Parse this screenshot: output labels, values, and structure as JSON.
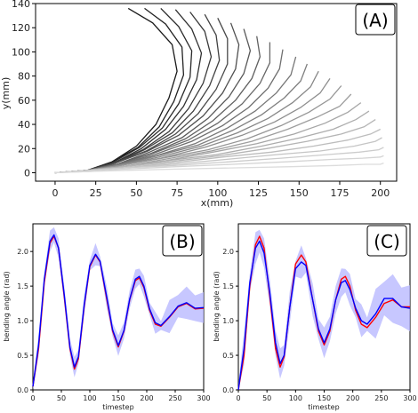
{
  "chart_data": [
    {
      "type": "line",
      "panel_label": "(A)",
      "xlabel": "x(mm)",
      "ylabel": "y(mm)",
      "xlim": [
        -12,
        210
      ],
      "ylim": [
        -7,
        140
      ],
      "xticks": [
        0,
        25,
        50,
        75,
        100,
        125,
        150,
        175,
        200
      ],
      "yticks": [
        0,
        20,
        40,
        60,
        80,
        100,
        120,
        140
      ],
      "description_colors": {
        "darkest": "#1a1a1a",
        "lightest": "#dcdcdc"
      },
      "series": [
        {
          "x": [
            0,
            20,
            35,
            50,
            62,
            70,
            75,
            72,
            60,
            45
          ],
          "y": [
            0,
            2,
            9,
            22,
            40,
            62,
            84,
            106,
            124,
            136
          ]
        },
        {
          "x": [
            0,
            20,
            35,
            51,
            64,
            73,
            79,
            78,
            68,
            55
          ],
          "y": [
            0,
            2,
            9,
            21,
            38,
            59,
            81,
            104,
            123,
            136
          ]
        },
        {
          "x": [
            0,
            20,
            36,
            52,
            66,
            76,
            83,
            84,
            76,
            65
          ],
          "y": [
            0,
            2,
            9,
            21,
            37,
            57,
            79,
            101,
            121,
            136
          ]
        },
        {
          "x": [
            0,
            20,
            36,
            53,
            68,
            79,
            87,
            90,
            84,
            74
          ],
          "y": [
            0,
            2,
            8,
            20,
            36,
            55,
            77,
            99,
            119,
            135
          ]
        },
        {
          "x": [
            0,
            20,
            36,
            54,
            70,
            82,
            91,
            96,
            92,
            83
          ],
          "y": [
            0,
            2,
            8,
            19,
            34,
            53,
            74,
            96,
            117,
            133
          ]
        },
        {
          "x": [
            0,
            20,
            37,
            55,
            72,
            85,
            95,
            101,
            99,
            92
          ],
          "y": [
            0,
            2,
            8,
            19,
            33,
            51,
            72,
            93,
            114,
            131
          ]
        },
        {
          "x": [
            0,
            20,
            37,
            56,
            74,
            88,
            99,
            106,
            106,
            100
          ],
          "y": [
            0,
            2,
            8,
            18,
            32,
            49,
            69,
            90,
            111,
            128
          ]
        },
        {
          "x": [
            0,
            20,
            37,
            57,
            76,
            91,
            103,
            111,
            113,
            108
          ],
          "y": [
            0,
            2,
            8,
            18,
            31,
            47,
            66,
            86,
            106,
            124
          ]
        },
        {
          "x": [
            0,
            20,
            38,
            58,
            78,
            94,
            107,
            116,
            120,
            116
          ],
          "y": [
            0,
            2,
            7,
            17,
            29,
            45,
            63,
            82,
            101,
            119
          ]
        },
        {
          "x": [
            0,
            20,
            38,
            59,
            80,
            97,
            111,
            121,
            126,
            124
          ],
          "y": [
            0,
            2,
            7,
            16,
            28,
            43,
            60,
            78,
            96,
            113
          ]
        },
        {
          "x": [
            0,
            20,
            38,
            60,
            82,
            100,
            115,
            126,
            132,
            132
          ],
          "y": [
            0,
            2,
            7,
            16,
            27,
            41,
            57,
            74,
            91,
            108
          ]
        },
        {
          "x": [
            0,
            20,
            39,
            61,
            84,
            103,
            119,
            131,
            138,
            140
          ],
          "y": [
            0,
            2,
            7,
            15,
            26,
            39,
            54,
            70,
            86,
            102
          ]
        },
        {
          "x": [
            0,
            20,
            39,
            62,
            86,
            106,
            123,
            136,
            145,
            148
          ],
          "y": [
            0,
            2,
            7,
            14,
            24,
            37,
            51,
            66,
            81,
            96
          ]
        },
        {
          "x": [
            0,
            20,
            39,
            63,
            88,
            109,
            127,
            141,
            151,
            155
          ],
          "y": [
            0,
            2,
            6,
            14,
            23,
            35,
            48,
            62,
            76,
            90
          ]
        },
        {
          "x": [
            0,
            20,
            40,
            64,
            90,
            112,
            131,
            146,
            157,
            162
          ],
          "y": [
            0,
            2,
            6,
            13,
            22,
            33,
            45,
            58,
            71,
            84
          ]
        },
        {
          "x": [
            0,
            20,
            40,
            65,
            92,
            115,
            135,
            151,
            163,
            169
          ],
          "y": [
            0,
            2,
            6,
            12,
            21,
            31,
            42,
            54,
            66,
            78
          ]
        },
        {
          "x": [
            0,
            20,
            40,
            66,
            94,
            118,
            139,
            156,
            169,
            176
          ],
          "y": [
            0,
            2,
            6,
            12,
            19,
            28,
            39,
            50,
            61,
            72
          ]
        },
        {
          "x": [
            0,
            20,
            41,
            67,
            96,
            121,
            143,
            161,
            175,
            182
          ],
          "y": [
            0,
            2,
            5,
            11,
            18,
            26,
            36,
            46,
            55,
            65
          ]
        },
        {
          "x": [
            0,
            20,
            41,
            68,
            97,
            124,
            147,
            166,
            180,
            188
          ],
          "y": [
            0,
            2,
            5,
            10,
            17,
            24,
            32,
            41,
            50,
            58
          ]
        },
        {
          "x": [
            0,
            20,
            41,
            69,
            99,
            127,
            151,
            171,
            185,
            193
          ],
          "y": [
            0,
            2,
            5,
            10,
            15,
            22,
            29,
            36,
            44,
            51
          ]
        },
        {
          "x": [
            0,
            20,
            42,
            70,
            101,
            130,
            155,
            176,
            190,
            197
          ],
          "y": [
            0,
            2,
            5,
            9,
            14,
            20,
            26,
            32,
            38,
            44
          ]
        },
        {
          "x": [
            0,
            21,
            42,
            71,
            103,
            133,
            159,
            180,
            194,
            200
          ],
          "y": [
            0,
            2,
            4,
            8,
            13,
            17,
            22,
            27,
            32,
            36
          ]
        },
        {
          "x": [
            0,
            21,
            43,
            72,
            105,
            136,
            163,
            184,
            197,
            201
          ],
          "y": [
            0,
            2,
            4,
            7,
            11,
            15,
            18,
            22,
            26,
            29
          ]
        },
        {
          "x": [
            0,
            21,
            43,
            73,
            107,
            139,
            167,
            187,
            199,
            202
          ],
          "y": [
            0,
            2,
            4,
            6,
            9,
            12,
            15,
            17,
            19,
            21
          ]
        },
        {
          "x": [
            0,
            21,
            43,
            74,
            109,
            142,
            170,
            189,
            200,
            202
          ],
          "y": [
            0,
            1,
            3,
            5,
            7,
            9,
            11,
            12,
            13,
            14
          ]
        },
        {
          "x": [
            0,
            21,
            44,
            75,
            111,
            145,
            173,
            191,
            200,
            202
          ],
          "y": [
            0,
            1,
            2,
            3,
            4,
            5,
            6,
            7,
            7,
            8
          ]
        }
      ]
    },
    {
      "type": "line",
      "panel_label": "(B)",
      "xlabel": "timestep",
      "ylabel": "bending angle (rad)",
      "xlim": [
        0,
        300
      ],
      "ylim": [
        0,
        2.4
      ],
      "xticks": [
        0,
        50,
        100,
        150,
        200,
        250,
        300
      ],
      "yticks": [
        0.0,
        0.5,
        1.0,
        1.5,
        2.0
      ],
      "series": [
        {
          "color": "#ff0000",
          "x": [
            0,
            10,
            20,
            30,
            37,
            45,
            55,
            65,
            73,
            80,
            90,
            100,
            110,
            118,
            130,
            140,
            150,
            160,
            170,
            180,
            187,
            195,
            205,
            215,
            225,
            240,
            255,
            270,
            285,
            300
          ],
          "y": [
            0.05,
            0.6,
            1.55,
            2.12,
            2.22,
            2.05,
            1.35,
            0.6,
            0.3,
            0.45,
            1.2,
            1.78,
            1.95,
            1.85,
            1.3,
            0.85,
            0.62,
            0.85,
            1.3,
            1.58,
            1.62,
            1.48,
            1.15,
            0.95,
            0.92,
            1.05,
            1.2,
            1.25,
            1.17,
            1.18
          ]
        },
        {
          "color": "#0000ff",
          "x": [
            0,
            10,
            20,
            30,
            37,
            45,
            55,
            65,
            73,
            80,
            90,
            100,
            110,
            118,
            130,
            140,
            150,
            160,
            170,
            180,
            187,
            195,
            205,
            215,
            225,
            240,
            255,
            270,
            285,
            300
          ],
          "y": [
            0.05,
            0.65,
            1.6,
            2.15,
            2.24,
            2.05,
            1.38,
            0.62,
            0.33,
            0.48,
            1.22,
            1.8,
            1.96,
            1.86,
            1.33,
            0.87,
            0.64,
            0.86,
            1.31,
            1.6,
            1.64,
            1.5,
            1.17,
            0.97,
            0.93,
            1.06,
            1.21,
            1.26,
            1.18,
            1.19
          ]
        }
      ],
      "band": {
        "color": "#b4b4ff"
      }
    },
    {
      "type": "line",
      "panel_label": "(C)",
      "xlabel": "timestep",
      "ylabel": "bending angle (rad)",
      "xlim": [
        0,
        300
      ],
      "ylim": [
        0,
        2.4
      ],
      "xticks": [
        0,
        50,
        100,
        150,
        200,
        250,
        300
      ],
      "yticks": [
        0.0,
        0.5,
        1.0,
        1.5,
        2.0
      ],
      "series": [
        {
          "color": "#ff0000",
          "x": [
            0,
            10,
            20,
            30,
            37,
            45,
            55,
            65,
            73,
            80,
            90,
            100,
            110,
            118,
            130,
            140,
            150,
            160,
            170,
            180,
            187,
            195,
            205,
            215,
            225,
            240,
            255,
            270,
            285,
            300
          ],
          "y": [
            0.0,
            0.5,
            1.5,
            2.1,
            2.22,
            2.05,
            1.35,
            0.6,
            0.33,
            0.48,
            1.2,
            1.82,
            1.95,
            1.85,
            1.3,
            0.85,
            0.65,
            0.85,
            1.3,
            1.6,
            1.64,
            1.5,
            1.15,
            0.95,
            0.9,
            1.05,
            1.25,
            1.3,
            1.2,
            1.2
          ]
        },
        {
          "color": "#0000ff",
          "x": [
            0,
            10,
            20,
            30,
            37,
            45,
            55,
            65,
            73,
            80,
            90,
            100,
            110,
            118,
            130,
            140,
            150,
            160,
            170,
            180,
            187,
            195,
            205,
            215,
            225,
            240,
            255,
            270,
            285,
            300
          ],
          "y": [
            0.0,
            0.6,
            1.55,
            2.05,
            2.15,
            1.98,
            1.4,
            0.68,
            0.38,
            0.5,
            1.2,
            1.75,
            1.85,
            1.8,
            1.3,
            0.88,
            0.68,
            0.88,
            1.3,
            1.55,
            1.58,
            1.45,
            1.18,
            1.0,
            0.95,
            1.1,
            1.32,
            1.32,
            1.2,
            1.18
          ]
        }
      ],
      "band": {
        "color": "#b4b4ff"
      }
    }
  ]
}
